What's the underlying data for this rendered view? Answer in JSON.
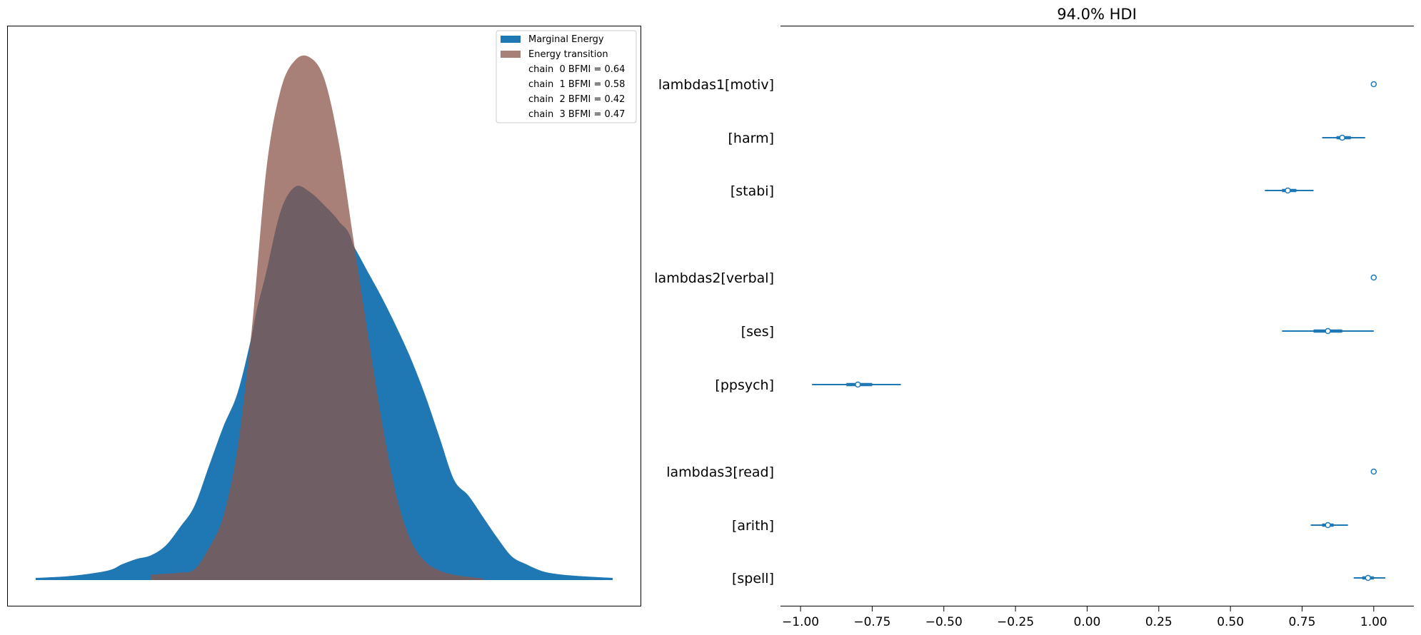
{
  "colors": {
    "marginal": "#1f77b4",
    "transition": "#8c564b",
    "overlap": "#6f5e64",
    "forest": "#1f77b4"
  },
  "chart_data": [
    {
      "type": "area",
      "title": "",
      "xlabel": "",
      "ylabel": "",
      "axes_ticks": false,
      "legend_position": "top-right",
      "x": [
        -4.0,
        -3.5,
        -3.0,
        -2.8,
        -2.6,
        -2.4,
        -2.2,
        -2.0,
        -1.8,
        -1.6,
        -1.4,
        -1.2,
        -1.0,
        -0.8,
        -0.6,
        -0.4,
        -0.2,
        0.0,
        0.2,
        0.4,
        0.6,
        0.8,
        1.0,
        1.2,
        1.4,
        1.6,
        1.8,
        2.0,
        2.2,
        2.4,
        2.6,
        2.8,
        3.0,
        3.2,
        3.5,
        4.0
      ],
      "series": [
        {
          "name": "Marginal Energy",
          "values": [
            0.004,
            0.008,
            0.018,
            0.03,
            0.04,
            0.047,
            0.065,
            0.1,
            0.14,
            0.215,
            0.29,
            0.355,
            0.465,
            0.585,
            0.7,
            0.745,
            0.735,
            0.71,
            0.68,
            0.635,
            0.585,
            0.535,
            0.48,
            0.42,
            0.35,
            0.27,
            0.19,
            0.16,
            0.12,
            0.08,
            0.045,
            0.03,
            0.018,
            0.012,
            0.008,
            0.004
          ]
        },
        {
          "name": "Energy transition",
          "values": [
            null,
            null,
            null,
            null,
            null,
            0.01,
            0.012,
            0.014,
            0.02,
            0.06,
            0.12,
            0.25,
            0.48,
            0.78,
            0.93,
            0.985,
            0.99,
            0.95,
            0.83,
            0.65,
            0.47,
            0.3,
            0.16,
            0.075,
            0.035,
            0.018,
            0.01,
            0.006,
            0.003,
            null,
            null,
            null,
            null,
            null,
            null,
            null
          ]
        }
      ],
      "legend": [
        "Marginal Energy",
        "Energy transition",
        "chain  0 BFMI = 0.64",
        "chain  1 BFMI = 0.58",
        "chain  2 BFMI = 0.42",
        "chain  3 BFMI = 0.47"
      ]
    },
    {
      "type": "scatter",
      "title": "94.0% HDI",
      "xlabel": "",
      "ylabel": "",
      "xlim": [
        -1.07,
        1.14
      ],
      "xticks": [
        -1.0,
        -0.75,
        -0.5,
        -0.25,
        0.0,
        0.25,
        0.5,
        0.75,
        1.0
      ],
      "xtick_labels": [
        "−1.00",
        "−0.75",
        "−0.50",
        "−0.25",
        "0.00",
        "0.25",
        "0.50",
        "0.75",
        "1.00"
      ],
      "rows": [
        {
          "label": "lambdas1[motiv]",
          "median": 1.0,
          "hdi_low": null,
          "hdi_high": null,
          "iqr_low": null,
          "iqr_high": null
        },
        {
          "label": "[harm]",
          "median": 0.89,
          "hdi_low": 0.82,
          "hdi_high": 0.97,
          "iqr_low": 0.87,
          "iqr_high": 0.92
        },
        {
          "label": "[stabi]",
          "median": 0.7,
          "hdi_low": 0.62,
          "hdi_high": 0.79,
          "iqr_low": 0.68,
          "iqr_high": 0.73
        },
        {
          "label": "lambdas2[verbal]",
          "median": 1.0,
          "hdi_low": null,
          "hdi_high": null,
          "iqr_low": null,
          "iqr_high": null
        },
        {
          "label": "[ses]",
          "median": 0.84,
          "hdi_low": 0.68,
          "hdi_high": 1.0,
          "iqr_low": 0.79,
          "iqr_high": 0.89
        },
        {
          "label": "[ppsych]",
          "median": -0.8,
          "hdi_low": -0.96,
          "hdi_high": -0.65,
          "iqr_low": -0.84,
          "iqr_high": -0.75
        },
        {
          "label": "lambdas3[read]",
          "median": 1.0,
          "hdi_low": null,
          "hdi_high": null,
          "iqr_low": null,
          "iqr_high": null
        },
        {
          "label": "[arith]",
          "median": 0.84,
          "hdi_low": 0.78,
          "hdi_high": 0.91,
          "iqr_low": 0.82,
          "iqr_high": 0.86
        },
        {
          "label": "[spell]",
          "median": 0.98,
          "hdi_low": 0.93,
          "hdi_high": 1.04,
          "iqr_low": 0.96,
          "iqr_high": 1.0
        }
      ]
    }
  ]
}
